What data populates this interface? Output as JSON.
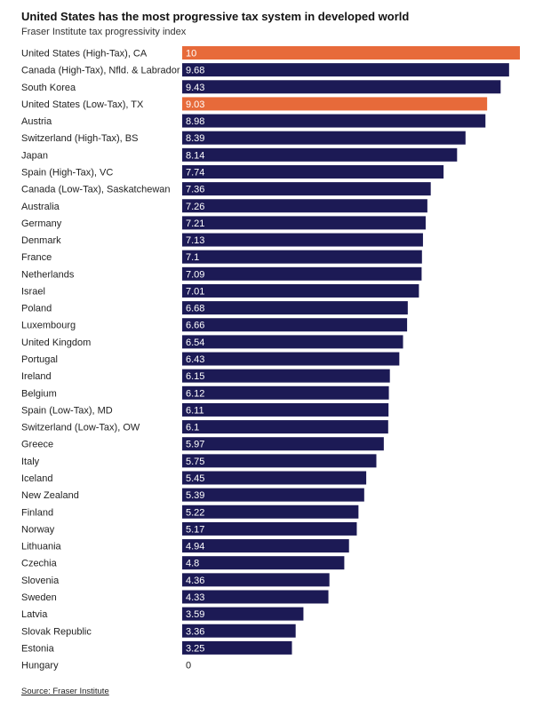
{
  "header": {
    "title": "United States has the most progressive tax system in developed world",
    "subtitle": "Fraser Institute tax progressivity index"
  },
  "footer": {
    "source": "Source: Fraser Institute"
  },
  "colors": {
    "default_bar": "#1c1a55",
    "highlight_bar": "#e76a3a"
  },
  "chart_data": {
    "type": "bar",
    "orientation": "horizontal",
    "xlim": [
      0,
      10
    ],
    "grid": false,
    "legend": "none",
    "categories": [
      "United States (High-Tax), CA",
      "Canada (High-Tax), Nfld. & Labrador",
      "South Korea",
      "United States (Low-Tax), TX",
      "Austria",
      "Switzerland (High-Tax), BS",
      "Japan",
      "Spain (High-Tax), VC",
      "Canada (Low-Tax), Saskatchewan",
      "Australia",
      "Germany",
      "Denmark",
      "France",
      "Netherlands",
      "Israel",
      "Poland",
      "Luxembourg",
      "United Kingdom",
      "Portugal",
      "Ireland",
      "Belgium",
      "Spain (Low-Tax), MD",
      "Switzerland (Low-Tax), OW",
      "Greece",
      "Italy",
      "Iceland",
      "New Zealand",
      "Finland",
      "Norway",
      "Lithuania",
      "Czechia",
      "Slovenia",
      "Sweden",
      "Latvia",
      "Slovak Republic",
      "Estonia",
      "Hungary"
    ],
    "values": [
      10,
      9.68,
      9.43,
      9.03,
      8.98,
      8.39,
      8.14,
      7.74,
      7.36,
      7.26,
      7.21,
      7.13,
      7.1,
      7.09,
      7.01,
      6.68,
      6.66,
      6.54,
      6.43,
      6.15,
      6.12,
      6.11,
      6.1,
      5.97,
      5.75,
      5.45,
      5.39,
      5.22,
      5.17,
      4.94,
      4.8,
      4.36,
      4.33,
      3.59,
      3.36,
      3.25,
      0
    ],
    "value_labels": [
      "10",
      "9.68",
      "9.43",
      "9.03",
      "8.98",
      "8.39",
      "8.14",
      "7.74",
      "7.36",
      "7.26",
      "7.21",
      "7.13",
      "7.1",
      "7.09",
      "7.01",
      "6.68",
      "6.66",
      "6.54",
      "6.43",
      "6.15",
      "6.12",
      "6.11",
      "6.1",
      "5.97",
      "5.75",
      "5.45",
      "5.39",
      "5.22",
      "5.17",
      "4.94",
      "4.8",
      "4.36",
      "4.33",
      "3.59",
      "3.36",
      "3.25",
      "0"
    ],
    "highlighted": [
      "United States (High-Tax), CA",
      "United States (Low-Tax), TX"
    ]
  }
}
